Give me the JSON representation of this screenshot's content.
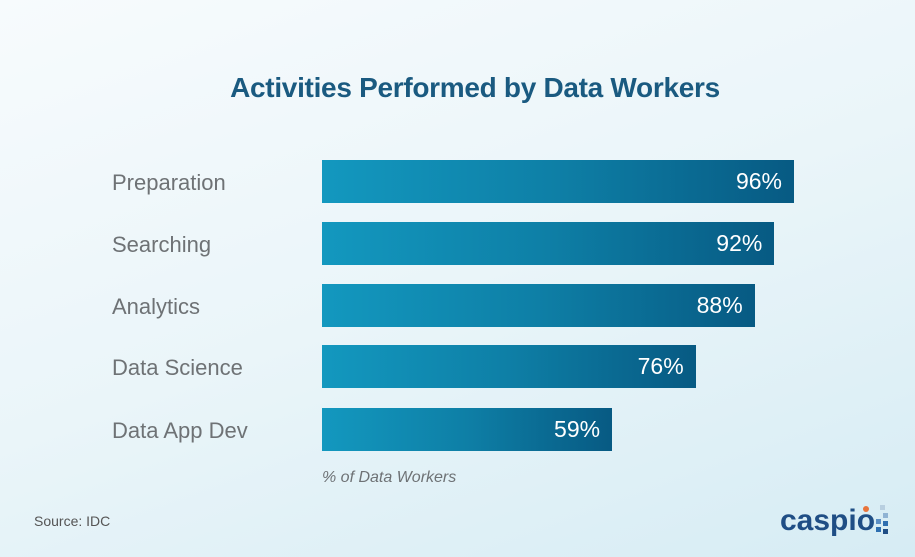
{
  "chart_data": {
    "type": "bar",
    "orientation": "horizontal",
    "title": "Activities Performed by Data Workers",
    "xlabel": "% of Data Workers",
    "categories": [
      "Preparation",
      "Searching",
      "Analytics",
      "Data Science",
      "Data App Dev"
    ],
    "values": [
      96,
      92,
      88,
      76,
      59
    ],
    "data_labels": [
      "96%",
      "92%",
      "88%",
      "76%",
      "59%"
    ],
    "grid": false,
    "colors": {
      "bar_start": "#1398bf",
      "bar_end": "#075a83",
      "title": "#1a5a80"
    }
  },
  "source": "Source: IDC",
  "logo": {
    "text": "caspio",
    "colors": {
      "text": "#1f4e85",
      "dot": "#e8743b"
    }
  }
}
